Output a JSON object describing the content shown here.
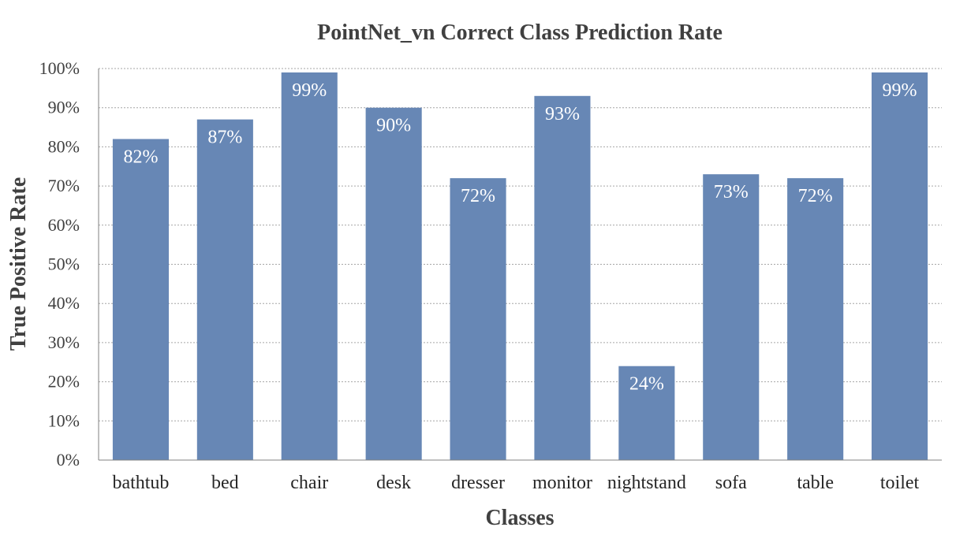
{
  "colors": {
    "bar": "#6787b5",
    "data_label": "#ffffff",
    "text": "#404040",
    "grid": "#a6a6a6"
  },
  "chart_data": {
    "type": "bar",
    "title": "PointNet_vn Correct Class Prediction Rate",
    "xlabel": "Classes",
    "ylabel": "True Positive Rate",
    "categories": [
      "bathtub",
      "bed",
      "chair",
      "desk",
      "dresser",
      "monitor",
      "nightstand",
      "sofa",
      "table",
      "toilet"
    ],
    "values": [
      82,
      87,
      99,
      90,
      72,
      93,
      24,
      73,
      72,
      99
    ],
    "data_labels": [
      "82%",
      "87%",
      "99%",
      "90%",
      "72%",
      "93%",
      "24%",
      "73%",
      "72%",
      "99%"
    ],
    "ylim": [
      0,
      100
    ],
    "y_ticks": [
      0,
      10,
      20,
      30,
      40,
      50,
      60,
      70,
      80,
      90,
      100
    ],
    "y_tick_labels": [
      "0%",
      "10%",
      "20%",
      "30%",
      "40%",
      "50%",
      "60%",
      "70%",
      "80%",
      "90%",
      "100%"
    ],
    "grid": true,
    "legend": "none"
  }
}
